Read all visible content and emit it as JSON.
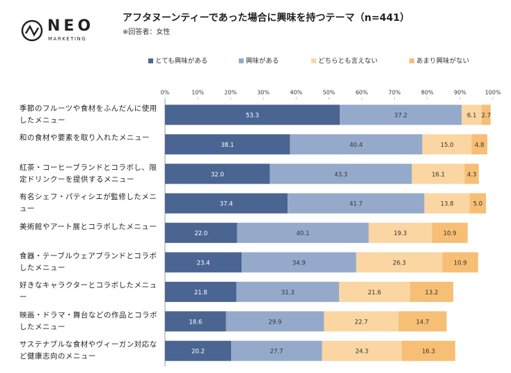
{
  "logo": {
    "name": "NEO",
    "sub": "MARKETING"
  },
  "chart_data": {
    "type": "stacked-barh",
    "title": "アフタヌーンティーであった場合に興味を持つテーマ（n=441）",
    "subtitle": "※回答者：女性",
    "categories": [
      "季節のフルーツや食材をふんだんに使用したメニュー",
      "和の食材や要素を取り入れたメニュー",
      "紅茶・コーヒーブランドとコラボし、限定ドリンクーを提供するメニュー",
      "有名シェフ・パティシエが監修したメニュー",
      "美術館やアート展とコラボしたメニュー",
      "食器・テーブルウェアブランドとコラボしたメニュー",
      "好きなキャラクターとコラボしたメニュー",
      "映画・ドラマ・舞台などの作品とコラボしたメニュー",
      "サステナブルな食材やヴィーガン対応など健康志向のメニュー"
    ],
    "series": [
      {
        "name": "とても興味がある",
        "color": "#4a6591",
        "values": [
          53.3,
          38.1,
          32.0,
          37.4,
          22.0,
          23.4,
          21.8,
          18.6,
          20.2
        ],
        "value_labels": [
          "53.3",
          "38.1",
          "32.0",
          "37.4",
          "22.0",
          "23.4",
          "21.8",
          "18.6",
          "20.2"
        ]
      },
      {
        "name": "興味がある",
        "color": "#95aaca",
        "values": [
          37.2,
          40.4,
          43.3,
          41.7,
          40.1,
          34.9,
          31.3,
          29.9,
          27.7
        ],
        "value_labels": [
          "37.2",
          "40.4",
          "43.3",
          "41.7",
          "40.1",
          "34.9",
          "31.3",
          "29.9",
          "27.7"
        ]
      },
      {
        "name": "どちらとも言えない",
        "color": "#fbd6a2",
        "values": [
          6.1,
          15.0,
          16.1,
          13.8,
          19.3,
          26.3,
          21.6,
          22.7,
          24.3
        ],
        "value_labels": [
          "6.1",
          "15.0",
          "16.1",
          "13.8",
          "19.3",
          "26.3",
          "21.6",
          "22.7",
          "24.3"
        ]
      },
      {
        "name": "あまり興味がない",
        "color": "#f6bf75",
        "values": [
          2.7,
          4.8,
          4.3,
          5.0,
          10.9,
          10.9,
          13.2,
          14.7,
          16.3
        ],
        "value_labels": [
          "2.7",
          "4.8",
          "4.3",
          "5.0",
          "10.9",
          "10.9",
          "13.2",
          "14.7",
          "16.3"
        ]
      }
    ],
    "xlim": [
      0,
      100
    ],
    "xticks": [
      {
        "value": 0,
        "label": "0%"
      },
      {
        "value": 10,
        "label": "10%"
      },
      {
        "value": 20,
        "label": "20%"
      },
      {
        "value": 30,
        "label": "30%"
      },
      {
        "value": 40,
        "label": "40%"
      },
      {
        "value": 50,
        "label": "50%"
      },
      {
        "value": 60,
        "label": "60%"
      },
      {
        "value": 70,
        "label": "70%"
      },
      {
        "value": 80,
        "label": "80%"
      },
      {
        "value": 90,
        "label": "90%"
      },
      {
        "value": 100,
        "label": "100%"
      }
    ],
    "legend": "top"
  }
}
